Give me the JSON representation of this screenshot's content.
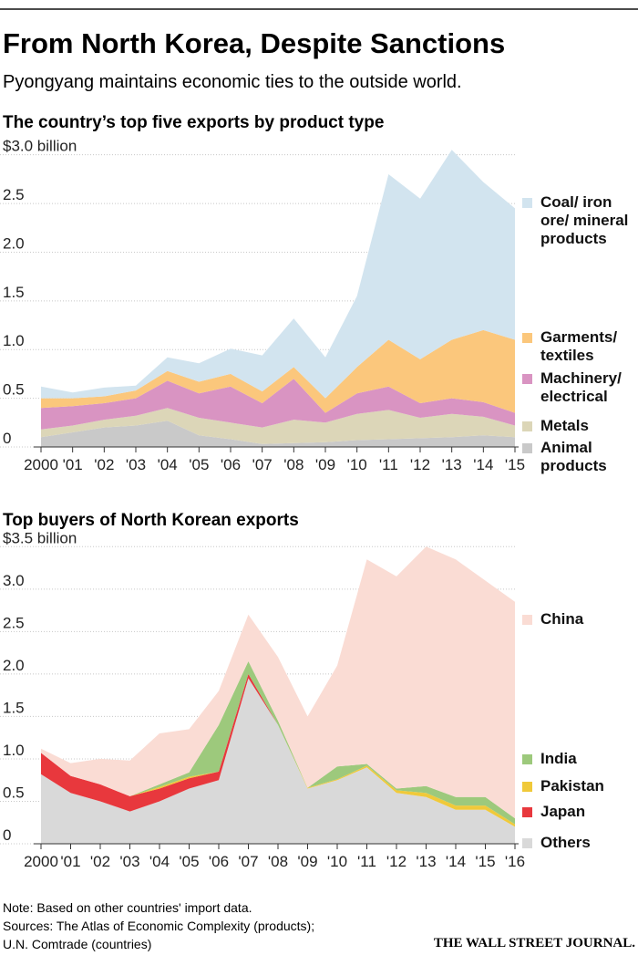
{
  "header": {
    "title": "From North Korea, Despite Sanctions",
    "subtitle": "Pyongyang maintains economic ties to the outside world."
  },
  "chart_data": [
    {
      "type": "area",
      "stacked": true,
      "title": "The country’s top five exports by product type",
      "categories": [
        "2000",
        "'01",
        "'02",
        "'03",
        "'04",
        "'05",
        "'06",
        "'07",
        "'08",
        "'09",
        "'10",
        "'11",
        "'12",
        "'13",
        "'14",
        "'15"
      ],
      "series": [
        {
          "name": "Animal products",
          "color": "#c9c9c9",
          "values": [
            0.1,
            0.15,
            0.2,
            0.22,
            0.27,
            0.12,
            0.08,
            0.03,
            0.04,
            0.05,
            0.07,
            0.08,
            0.09,
            0.1,
            0.12,
            0.1
          ]
        },
        {
          "name": "Metals",
          "color": "#dcd6b8",
          "values": [
            0.08,
            0.07,
            0.08,
            0.1,
            0.13,
            0.18,
            0.17,
            0.17,
            0.24,
            0.2,
            0.27,
            0.3,
            0.21,
            0.24,
            0.19,
            0.12
          ]
        },
        {
          "name": "Machinery/ electrical",
          "color": "#d994c2",
          "values": [
            0.22,
            0.2,
            0.17,
            0.18,
            0.28,
            0.25,
            0.37,
            0.25,
            0.42,
            0.1,
            0.21,
            0.24,
            0.15,
            0.16,
            0.15,
            0.13
          ]
        },
        {
          "name": "Garments/ textiles",
          "color": "#fbc77c",
          "values": [
            0.1,
            0.08,
            0.07,
            0.08,
            0.1,
            0.12,
            0.13,
            0.12,
            0.12,
            0.15,
            0.27,
            0.48,
            0.45,
            0.6,
            0.74,
            0.75
          ]
        },
        {
          "name": "Coal/ iron ore/ mineral products",
          "color": "#d2e4ef",
          "values": [
            0.12,
            0.06,
            0.09,
            0.05,
            0.14,
            0.19,
            0.26,
            0.37,
            0.5,
            0.42,
            0.73,
            1.7,
            1.65,
            1.95,
            1.52,
            1.35
          ]
        }
      ],
      "ylim": [
        0,
        3.1
      ],
      "yticks": [
        0,
        0.5,
        {
          "value": 1,
          "label": "1.0"
        },
        1.5,
        {
          "value": 2,
          "label": "2.0"
        },
        2.5,
        {
          "value": 3,
          "label": "$3.0 billion"
        }
      ],
      "grid": true
    },
    {
      "type": "area",
      "stacked": true,
      "title": "Top buyers of North Korean exports",
      "categories": [
        "2000",
        "'01",
        "'02",
        "'03",
        "'04",
        "'05",
        "'06",
        "'07",
        "'08",
        "'09",
        "'10",
        "'11",
        "'12",
        "'13",
        "'14",
        "'15",
        "'16"
      ],
      "series": [
        {
          "name": "Others",
          "color": "#d9d9d9",
          "values": [
            0.82,
            0.6,
            0.5,
            0.38,
            0.5,
            0.65,
            0.75,
            1.95,
            1.4,
            0.65,
            0.75,
            0.9,
            0.6,
            0.55,
            0.4,
            0.4,
            0.2
          ]
        },
        {
          "name": "Japan",
          "color": "#e8383d",
          "values": [
            0.25,
            0.2,
            0.2,
            0.18,
            0.15,
            0.12,
            0.1,
            0.05,
            0,
            0,
            0,
            0,
            0,
            0,
            0,
            0,
            0
          ]
        },
        {
          "name": "Pakistan",
          "color": "#f0c93a",
          "values": [
            0,
            0,
            0,
            0,
            0.02,
            0.02,
            0,
            0,
            0,
            0.01,
            0.01,
            0.02,
            0.03,
            0.05,
            0.05,
            0.05,
            0.03
          ]
        },
        {
          "name": "India",
          "color": "#9dc97c",
          "values": [
            0,
            0,
            0,
            0,
            0.03,
            0.05,
            0.55,
            0.15,
            0.05,
            0,
            0.15,
            0.02,
            0.02,
            0.08,
            0.1,
            0.1,
            0.07
          ]
        },
        {
          "name": "China",
          "color": "#fadcd4",
          "values": [
            0.05,
            0.15,
            0.3,
            0.42,
            0.6,
            0.51,
            0.4,
            0.55,
            0.75,
            0.84,
            1.19,
            2.41,
            2.5,
            2.82,
            2.8,
            2.55,
            2.55
          ]
        }
      ],
      "ylim": [
        0,
        3.6
      ],
      "yticks": [
        0,
        0.5,
        {
          "value": 1,
          "label": "1.0"
        },
        1.5,
        {
          "value": 2,
          "label": "2.0"
        },
        2.5,
        {
          "value": 3,
          "label": "3.0"
        },
        {
          "value": 3.5,
          "label": "$3.5 billion"
        }
      ],
      "grid": true
    }
  ],
  "notes": [
    "Note: Based on other countries' import data.",
    "Sources: The Atlas of Economic Complexity (products);",
    "U.N. Comtrade (countries)"
  ],
  "logo": "THE WALL STREET JOURNAL."
}
